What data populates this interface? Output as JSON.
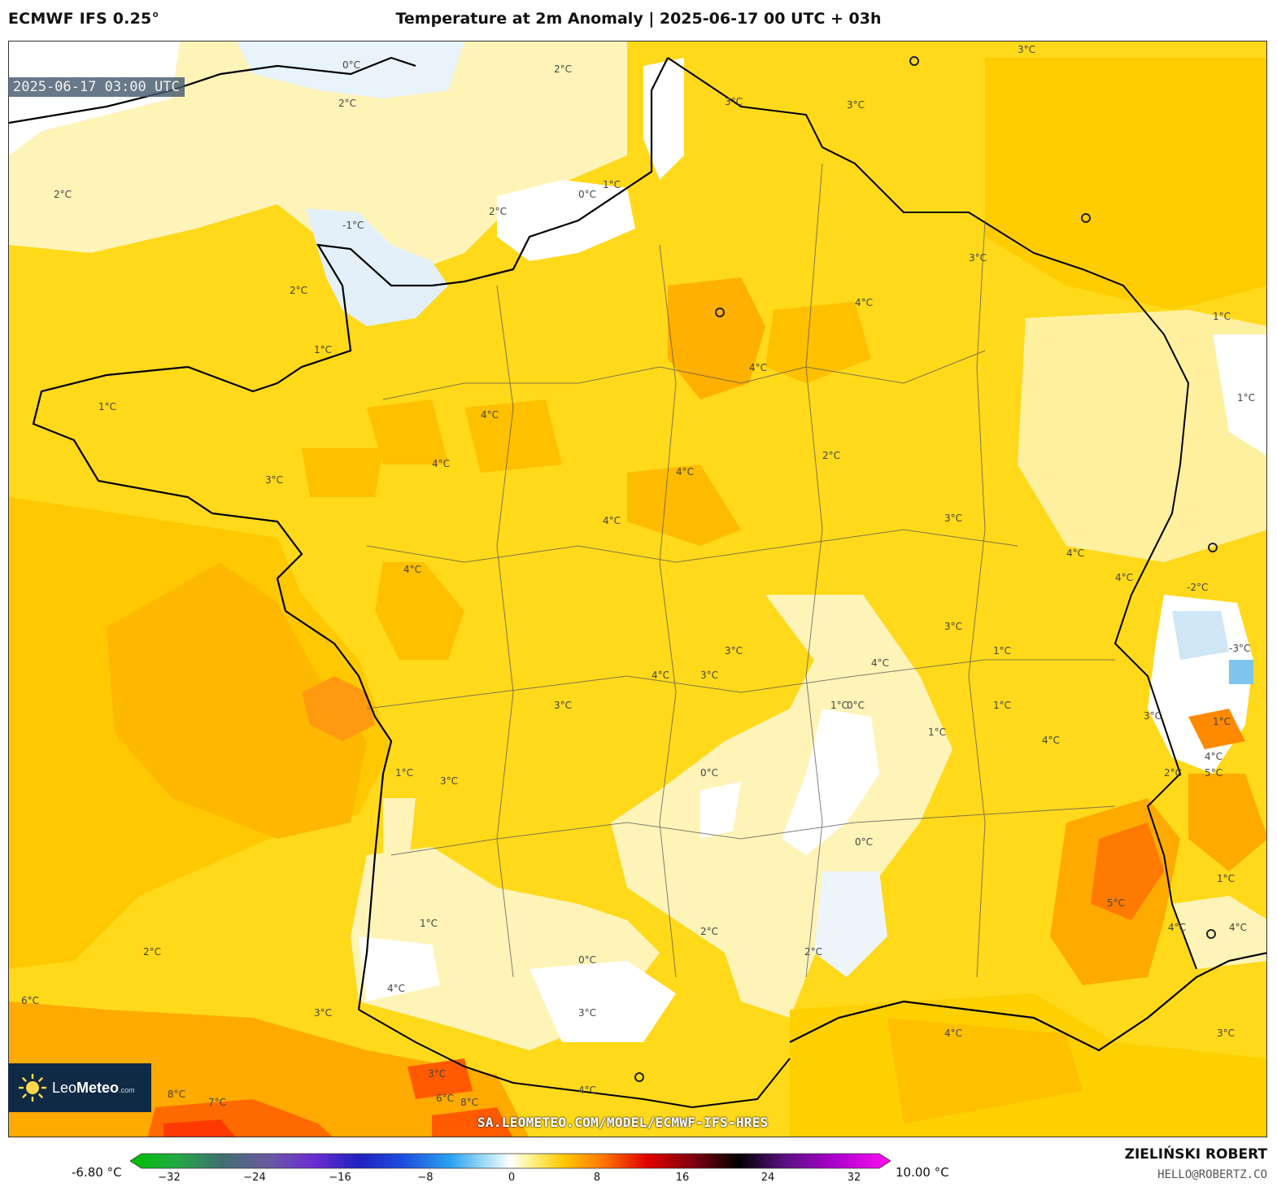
{
  "header": {
    "model": "ECMWF IFS 0.25°",
    "title": "Temperature at 2m Anomaly | 2025-06-17 00 UTC + 03h"
  },
  "map": {
    "valid_time": "2025-06-17 03:00 UTC",
    "watermark": "SA.LEOMETEO.COM/MODEL/ECMWF-IFS-HRES",
    "contour_labels": [
      "0°C",
      "1°C",
      "2°C",
      "3°C",
      "4°C",
      "5°C",
      "6°C",
      "7°C",
      "8°C",
      "-1°C",
      "-2°C",
      "-3°C"
    ]
  },
  "logo": {
    "brand_light": "Leo",
    "brand_bold": "Meteo",
    "domain": ".com"
  },
  "colorbar": {
    "min_label": "-6.80 °C",
    "max_label": "10.00 °C",
    "ticks": [
      "−32",
      "−24",
      "−16",
      "−8",
      "0",
      "8",
      "16",
      "24",
      "32"
    ]
  },
  "credits": {
    "author": "ZIELIŃSKI ROBERT",
    "email": "HELLO@ROBERTZ.CO"
  },
  "colors": {
    "anom_0": "#ffffff",
    "anom_1": "#fff4b8",
    "anom_2": "#ffe97a",
    "anom_3": "#ffd91a",
    "anom_4": "#ffc800",
    "anom_5": "#ffaa00",
    "anom_6": "#ff7a00",
    "anom_8": "#ff4000",
    "anom_neg": "#cfe6f5"
  }
}
